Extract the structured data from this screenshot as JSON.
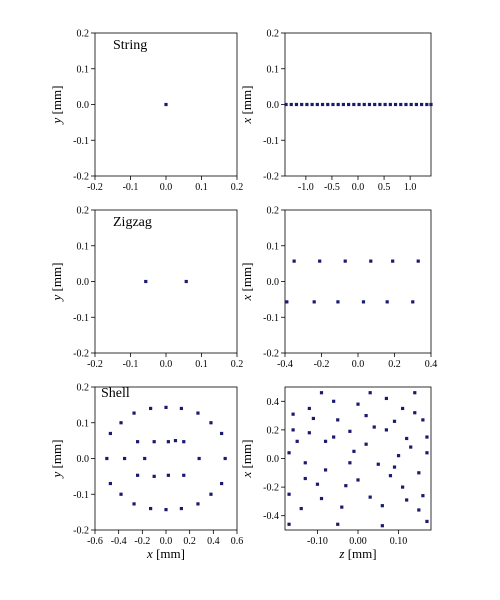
{
  "colors": {
    "marker": "#1a1a6e",
    "axis": "#000000",
    "background": "#ffffff"
  },
  "chart_data": [
    {
      "type": "scatter",
      "title": "String",
      "xlabel": "",
      "ylabel": "y [mm]",
      "xlim": [
        -0.2,
        0.2
      ],
      "ylim": [
        -0.2,
        0.2
      ],
      "xticks": [
        "-0.2",
        "-0.1",
        "0.0",
        "0.1",
        "0.2"
      ],
      "xtick_values": [
        -0.2,
        -0.1,
        0.0,
        0.1,
        0.2
      ],
      "yticks": [
        "-0.2",
        "-0.1",
        "0.0",
        "0.1",
        "0.2"
      ],
      "ytick_values": [
        -0.2,
        -0.1,
        0.0,
        0.1,
        0.2
      ],
      "points": [
        [
          0.0,
          0.0
        ]
      ]
    },
    {
      "type": "scatter",
      "title": "",
      "xlabel": "",
      "ylabel": "x [mm]",
      "xlim": [
        -1.4,
        1.4
      ],
      "ylim": [
        -0.2,
        0.2
      ],
      "xticks": [
        "-1.0",
        "-0.5",
        "0.0",
        "0.5",
        "1.0"
      ],
      "xtick_values": [
        -1.0,
        -0.5,
        0.0,
        0.5,
        1.0
      ],
      "yticks": [
        "-0.2",
        "-0.1",
        "0.0",
        "0.1",
        "0.2"
      ],
      "ytick_values": [
        -0.2,
        -0.1,
        0.0,
        0.1,
        0.2
      ],
      "points": [
        [
          -1.38,
          0
        ],
        [
          -1.28,
          0
        ],
        [
          -1.18,
          0
        ],
        [
          -1.08,
          0
        ],
        [
          -0.98,
          0
        ],
        [
          -0.88,
          0
        ],
        [
          -0.78,
          0
        ],
        [
          -0.68,
          0
        ],
        [
          -0.58,
          0
        ],
        [
          -0.48,
          0
        ],
        [
          -0.38,
          0
        ],
        [
          -0.28,
          0
        ],
        [
          -0.18,
          0
        ],
        [
          -0.08,
          0
        ],
        [
          0.02,
          0
        ],
        [
          0.12,
          0
        ],
        [
          0.22,
          0
        ],
        [
          0.32,
          0
        ],
        [
          0.42,
          0
        ],
        [
          0.52,
          0
        ],
        [
          0.62,
          0
        ],
        [
          0.72,
          0
        ],
        [
          0.82,
          0
        ],
        [
          0.92,
          0
        ],
        [
          1.02,
          0
        ],
        [
          1.12,
          0
        ],
        [
          1.22,
          0
        ],
        [
          1.32,
          0
        ],
        [
          1.4,
          0
        ]
      ]
    },
    {
      "type": "scatter",
      "title": "Zigzag",
      "xlabel": "",
      "ylabel": "y [mm]",
      "xlim": [
        -0.2,
        0.2
      ],
      "ylim": [
        -0.2,
        0.2
      ],
      "xticks": [
        "-0.2",
        "-0.1",
        "0.0",
        "0.1",
        "0.2"
      ],
      "xtick_values": [
        -0.2,
        -0.1,
        0.0,
        0.1,
        0.2
      ],
      "yticks": [
        "-0.2",
        "-0.1",
        "0.0",
        "0.1",
        "0.2"
      ],
      "ytick_values": [
        -0.2,
        -0.1,
        0.0,
        0.1,
        0.2
      ],
      "points": [
        [
          -0.057,
          0.0
        ],
        [
          0.057,
          0.0
        ]
      ]
    },
    {
      "type": "scatter",
      "title": "",
      "xlabel": "",
      "ylabel": "x [mm]",
      "xlim": [
        -0.4,
        0.4
      ],
      "ylim": [
        -0.2,
        0.2
      ],
      "xticks": [
        "-0.4",
        "-0.2",
        "0.0",
        "0.2",
        "0.4"
      ],
      "xtick_values": [
        -0.4,
        -0.2,
        0.0,
        0.2,
        0.4
      ],
      "yticks": [
        "-0.2",
        "-0.1",
        "0.0",
        "0.1",
        "0.2"
      ],
      "ytick_values": [
        -0.2,
        -0.1,
        0.0,
        0.1,
        0.2
      ],
      "points": [
        [
          -0.35,
          0.057
        ],
        [
          -0.21,
          0.057
        ],
        [
          -0.07,
          0.057
        ],
        [
          0.07,
          0.057
        ],
        [
          0.19,
          0.057
        ],
        [
          0.33,
          0.057
        ],
        [
          -0.39,
          -0.057
        ],
        [
          -0.24,
          -0.057
        ],
        [
          -0.11,
          -0.057
        ],
        [
          0.03,
          -0.057
        ],
        [
          0.16,
          -0.057
        ],
        [
          0.3,
          -0.057
        ]
      ]
    },
    {
      "type": "scatter",
      "title": "Shell",
      "xlabel": "x [mm]",
      "ylabel": "y [mm]",
      "xlim": [
        -0.6,
        0.6
      ],
      "ylim": [
        -0.2,
        0.2
      ],
      "xticks": [
        "-0.6",
        "-0.4",
        "-0.2",
        "0.0",
        "0.2",
        "0.4",
        "0.6"
      ],
      "xtick_values": [
        -0.6,
        -0.4,
        -0.2,
        0.0,
        0.2,
        0.4,
        0.6
      ],
      "yticks": [
        "-0.2",
        "-0.1",
        "0.0",
        "0.1",
        "0.2"
      ],
      "ytick_values": [
        -0.2,
        -0.1,
        0.0,
        0.1,
        0.2
      ],
      "points": [
        [
          -0.5,
          0.0
        ],
        [
          -0.47,
          0.07
        ],
        [
          -0.47,
          -0.07
        ],
        [
          -0.38,
          0.1
        ],
        [
          -0.38,
          -0.1
        ],
        [
          -0.27,
          0.127
        ],
        [
          -0.27,
          -0.127
        ],
        [
          -0.13,
          0.14
        ],
        [
          -0.13,
          -0.14
        ],
        [
          0.0,
          0.143
        ],
        [
          0.0,
          -0.143
        ],
        [
          0.13,
          0.14
        ],
        [
          0.13,
          -0.14
        ],
        [
          0.27,
          0.127
        ],
        [
          0.27,
          -0.127
        ],
        [
          0.38,
          0.1
        ],
        [
          0.38,
          -0.1
        ],
        [
          0.47,
          0.07
        ],
        [
          0.47,
          -0.07
        ],
        [
          0.5,
          0.0
        ],
        [
          -0.24,
          0.047
        ],
        [
          -0.24,
          -0.047
        ],
        [
          -0.1,
          0.047
        ],
        [
          -0.1,
          -0.05
        ],
        [
          0.02,
          0.047
        ],
        [
          0.02,
          -0.047
        ],
        [
          0.15,
          0.047
        ],
        [
          0.15,
          -0.047
        ],
        [
          0.28,
          0.0
        ],
        [
          -0.35,
          0.0
        ],
        [
          0.08,
          0.05
        ],
        [
          -0.18,
          0.0
        ]
      ]
    },
    {
      "type": "scatter",
      "title": "",
      "xlabel": "z [mm]",
      "ylabel": "x [mm]",
      "xlim": [
        -0.18,
        0.18
      ],
      "ylim": [
        -0.5,
        0.5
      ],
      "xticks": [
        "-0.10",
        "0.00",
        "0.10"
      ],
      "xtick_values": [
        -0.1,
        0.0,
        0.1
      ],
      "yticks": [
        "-0.4",
        "-0.2",
        "0.0",
        "0.2",
        "0.4"
      ],
      "ytick_values": [
        -0.4,
        -0.2,
        0.0,
        0.2,
        0.4
      ],
      "points": [
        [
          -0.09,
          0.46
        ],
        [
          0.03,
          0.46
        ],
        [
          0.14,
          0.46
        ],
        [
          -0.12,
          0.35
        ],
        [
          0.0,
          0.38
        ],
        [
          0.11,
          0.35
        ],
        [
          -0.16,
          0.2
        ],
        [
          -0.05,
          0.27
        ],
        [
          0.07,
          0.2
        ],
        [
          0.16,
          0.27
        ],
        [
          -0.17,
          0.04
        ],
        [
          -0.08,
          0.12
        ],
        [
          0.02,
          0.1
        ],
        [
          0.12,
          0.14
        ],
        [
          -0.13,
          -0.03
        ],
        [
          -0.02,
          -0.03
        ],
        [
          0.09,
          -0.06
        ],
        [
          0.17,
          0.04
        ],
        [
          -0.17,
          -0.25
        ],
        [
          -0.1,
          -0.18
        ],
        [
          0.0,
          -0.15
        ],
        [
          0.11,
          -0.2
        ],
        [
          -0.14,
          -0.35
        ],
        [
          -0.04,
          -0.34
        ],
        [
          0.06,
          -0.33
        ],
        [
          0.15,
          -0.36
        ],
        [
          -0.17,
          -0.46
        ],
        [
          -0.05,
          -0.46
        ],
        [
          0.06,
          -0.47
        ],
        [
          0.17,
          -0.44
        ],
        [
          -0.06,
          0.15
        ],
        [
          0.04,
          0.22
        ],
        [
          0.14,
          0.32
        ],
        [
          -0.15,
          0.12
        ],
        [
          -0.03,
          -0.19
        ],
        [
          0.08,
          -0.12
        ],
        [
          -0.11,
          0.28
        ],
        [
          0.02,
          0.3
        ],
        [
          0.13,
          0.08
        ],
        [
          -0.08,
          -0.08
        ],
        [
          0.05,
          -0.04
        ],
        [
          0.15,
          -0.1
        ],
        [
          -0.13,
          -0.14
        ],
        [
          -0.01,
          0.05
        ],
        [
          0.1,
          0.02
        ],
        [
          -0.06,
          0.4
        ],
        [
          0.07,
          0.42
        ],
        [
          -0.16,
          0.31
        ],
        [
          0.16,
          -0.26
        ],
        [
          -0.09,
          -0.28
        ],
        [
          0.03,
          -0.27
        ],
        [
          0.12,
          -0.29
        ],
        [
          -0.12,
          0.18
        ],
        [
          0.09,
          0.26
        ],
        [
          -0.02,
          0.19
        ],
        [
          0.17,
          0.15
        ]
      ]
    }
  ]
}
